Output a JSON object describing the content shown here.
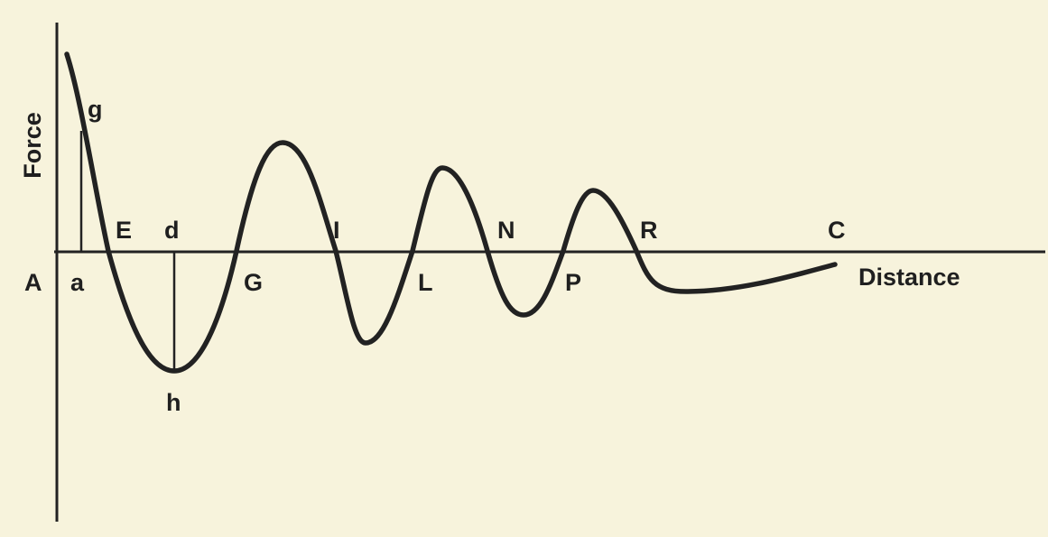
{
  "axis_labels": {
    "y": "Force",
    "x": "Distance"
  },
  "point_labels": {
    "A": "A",
    "a": "a",
    "g": "g",
    "E": "E",
    "d": "d",
    "h": "h",
    "G": "G",
    "I": "I",
    "L": "L",
    "N": "N",
    "P": "P",
    "R": "R",
    "C": "C"
  },
  "colors": {
    "background": "#f7f3dc",
    "ink": "#222222"
  }
}
